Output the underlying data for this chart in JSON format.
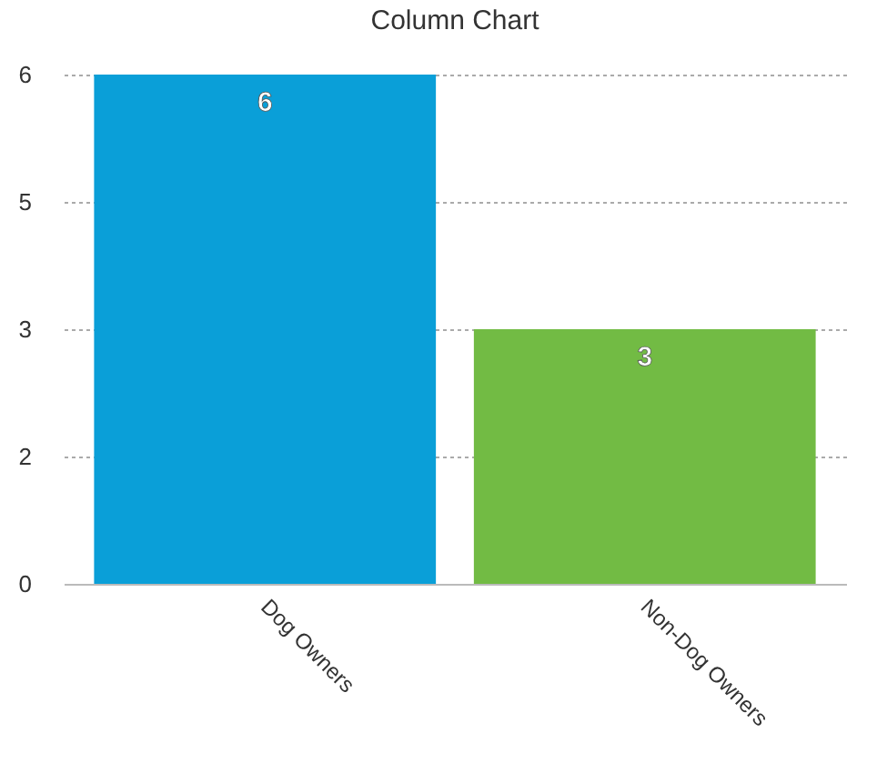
{
  "chart_data": {
    "type": "bar",
    "title": "Column Chart",
    "categories": [
      "Dog Owners",
      "Non-Dog Owners"
    ],
    "values": [
      6,
      3
    ],
    "colors": [
      "#0a9fd8",
      "#72bb44"
    ],
    "ylim": [
      0,
      6
    ],
    "yticks": [
      0,
      {
        "value": 1.5,
        "label": "2"
      },
      3,
      {
        "value": 4.5,
        "label": "5"
      },
      6
    ],
    "grid": "y",
    "data_labels": true
  }
}
